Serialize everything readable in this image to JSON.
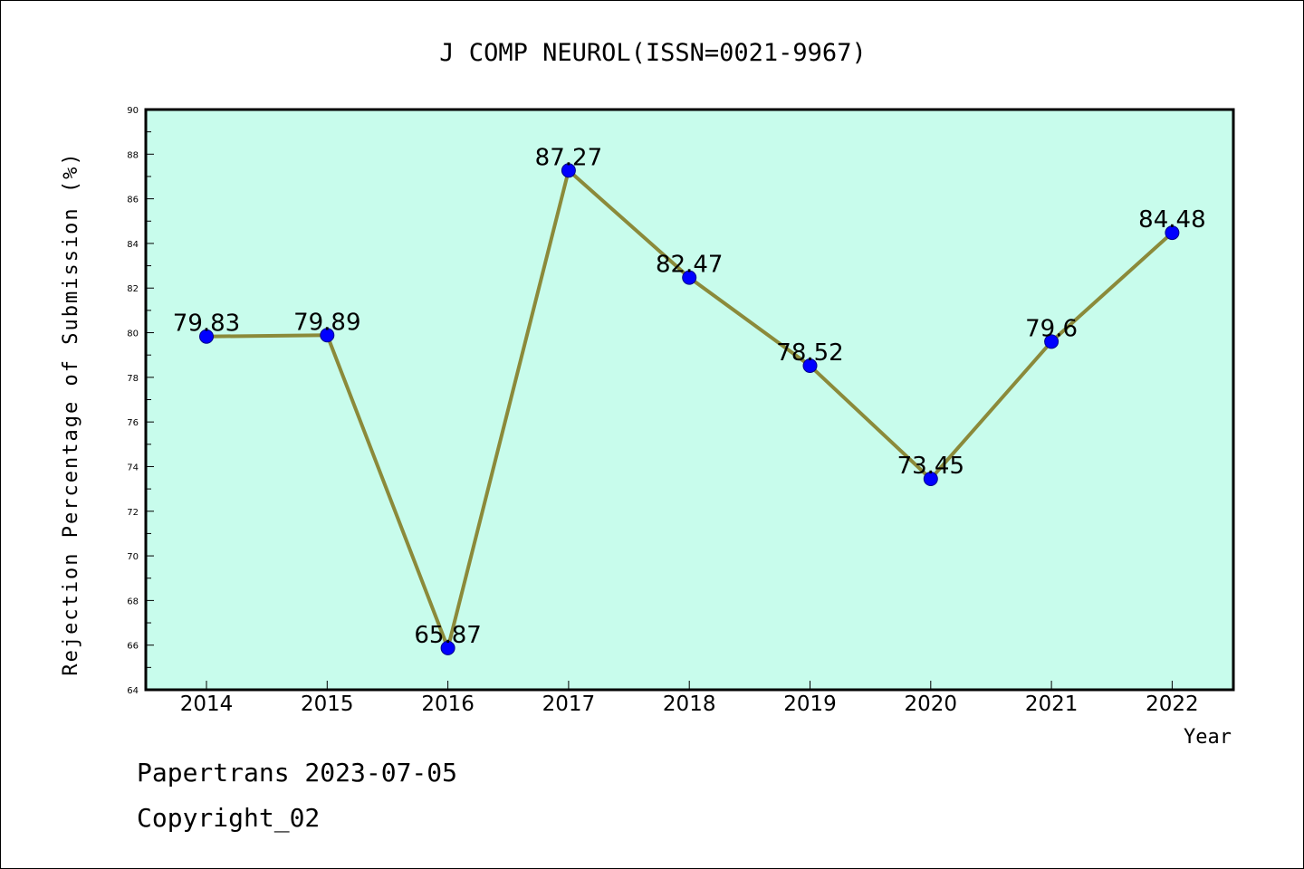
{
  "chart_data": {
    "type": "line",
    "title": "J COMP NEUROL(ISSN=0021-9967)",
    "xlabel": "Year",
    "ylabel": "Rejection Percentage of Submission (%)",
    "categories": [
      "2014",
      "2015",
      "2016",
      "2017",
      "2018",
      "2019",
      "2020",
      "2021",
      "2022"
    ],
    "series": [
      {
        "values": [
          79.83,
          79.89,
          65.87,
          87.27,
          82.47,
          78.52,
          73.45,
          79.6,
          84.48
        ],
        "labels": [
          "79.83",
          "79.89",
          "65.87",
          "87.27",
          "82.47",
          "78.52",
          "73.45",
          "79.6",
          "84.48"
        ]
      }
    ],
    "ylim": [
      64,
      90
    ],
    "yticks": [
      64,
      66,
      68,
      70,
      72,
      74,
      76,
      78,
      80,
      82,
      84,
      86,
      88,
      90
    ],
    "grid": false,
    "colors": {
      "plot_background": "#c8fcec",
      "line": "#8b8a3a",
      "marker": "#0000ff"
    }
  },
  "footer": {
    "line1": "Papertrans 2023-07-05",
    "line2": "Copyright_02"
  }
}
